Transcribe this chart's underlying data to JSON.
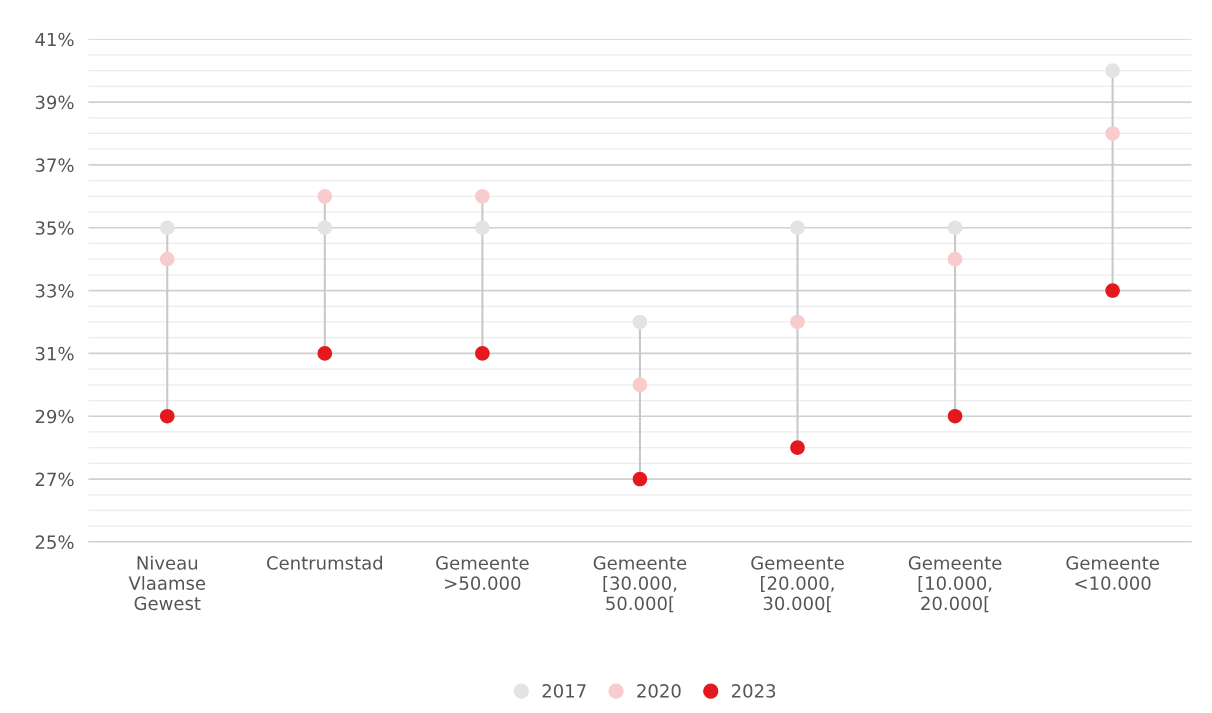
{
  "chart_data": {
    "type": "scatter",
    "categories": [
      "Niveau\nVlaamse\nGewest",
      "Centrumstad",
      "Gemeente\n>50.000",
      "Gemeente\n[30.000,\n50.000[",
      "Gemeente\n[20.000,\n30.000[",
      "Gemeente\n[10.000,\n20.000[",
      "Gemeente\n<10.000"
    ],
    "series": [
      {
        "name": "2017",
        "color": "#e3e3e3",
        "values": [
          35,
          35,
          35,
          32,
          35,
          35,
          40
        ]
      },
      {
        "name": "2020",
        "color": "#f8cccc",
        "values": [
          34,
          36,
          36,
          30,
          32,
          34,
          38
        ]
      },
      {
        "name": "2023",
        "color": "#e3191f",
        "values": [
          29,
          31,
          31,
          27,
          28,
          29,
          33
        ]
      }
    ],
    "ylim": [
      25,
      41
    ],
    "yticks": [
      {
        "value": 25,
        "label": "25%"
      },
      {
        "value": 25.5,
        "label": null
      },
      {
        "value": 26,
        "label": null
      },
      {
        "value": 26.5,
        "label": null
      },
      {
        "value": 27,
        "label": "27%"
      },
      {
        "value": 27.5,
        "label": null
      },
      {
        "value": 28,
        "label": null
      },
      {
        "value": 28.5,
        "label": null
      },
      {
        "value": 29,
        "label": "29%"
      },
      {
        "value": 29.5,
        "label": null
      },
      {
        "value": 30,
        "label": null
      },
      {
        "value": 30.5,
        "label": null
      },
      {
        "value": 31,
        "label": "31%"
      },
      {
        "value": 31.5,
        "label": null
      },
      {
        "value": 32,
        "label": null
      },
      {
        "value": 32.5,
        "label": null
      },
      {
        "value": 33,
        "label": "33%"
      },
      {
        "value": 33.5,
        "label": null
      },
      {
        "value": 34,
        "label": null
      },
      {
        "value": 34.5,
        "label": null
      },
      {
        "value": 35,
        "label": "35%"
      },
      {
        "value": 35.5,
        "label": null
      },
      {
        "value": 36,
        "label": null
      },
      {
        "value": 36.5,
        "label": null
      },
      {
        "value": 37,
        "label": "37%"
      },
      {
        "value": 37.5,
        "label": null
      },
      {
        "value": 38,
        "label": null
      },
      {
        "value": 38.5,
        "label": null
      },
      {
        "value": 39,
        "label": "39%"
      },
      {
        "value": 39.5,
        "label": null
      },
      {
        "value": 40,
        "label": null
      },
      {
        "value": 40.5,
        "label": null
      },
      {
        "value": 41,
        "label": "41%"
      }
    ],
    "grid": "y",
    "legend": "bottom",
    "marker": "circle"
  }
}
